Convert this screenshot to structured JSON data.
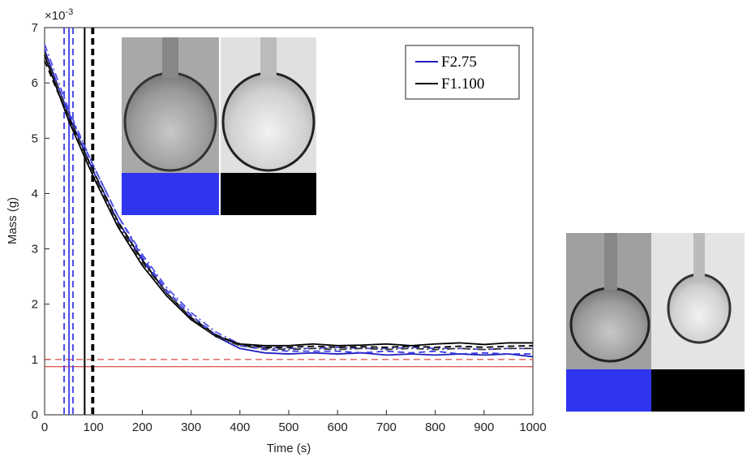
{
  "chart_data": {
    "type": "line",
    "x_label": "Time (s)",
    "y_label": "Mass (g)",
    "y_multiplier": {
      "base": "×10",
      "exponent": "-3"
    },
    "x": [
      0,
      50,
      100,
      150,
      200,
      250,
      300,
      350,
      400,
      450,
      500,
      550,
      600,
      650,
      700,
      750,
      800,
      850,
      900,
      950,
      1000
    ],
    "series": [
      {
        "name": "F2.75",
        "color": "#2020c0",
        "dash": "solid",
        "values": [
          6.6,
          5.4,
          4.4,
          3.5,
          2.8,
          2.2,
          1.75,
          1.42,
          1.2,
          1.12,
          1.1,
          1.12,
          1.1,
          1.12,
          1.08,
          1.1,
          1.08,
          1.1,
          1.08,
          1.1,
          1.05
        ]
      },
      {
        "color": "#3a3ae0",
        "dash": "dashed",
        "values": [
          6.5,
          5.45,
          4.5,
          3.6,
          2.85,
          2.25,
          1.8,
          1.45,
          1.25,
          1.18,
          1.15,
          1.15,
          1.15,
          1.12,
          1.15,
          1.12,
          1.15,
          1.1,
          1.12,
          1.1,
          1.1
        ]
      },
      {
        "color": "#5050e8",
        "dash": "dashdot",
        "values": [
          6.7,
          5.5,
          4.5,
          3.6,
          2.9,
          2.3,
          1.85,
          1.5,
          1.28,
          1.22,
          1.2,
          1.2,
          1.22,
          1.2,
          1.2,
          1.22,
          1.2,
          1.2,
          1.18,
          1.2,
          1.2
        ]
      },
      {
        "name": "F1.100",
        "color": "#000000",
        "dash": "solid",
        "values": [
          6.5,
          5.3,
          4.3,
          3.4,
          2.7,
          2.15,
          1.72,
          1.42,
          1.28,
          1.25,
          1.25,
          1.28,
          1.25,
          1.26,
          1.28,
          1.25,
          1.28,
          1.3,
          1.27,
          1.3,
          1.3
        ]
      },
      {
        "color": "#000000",
        "dash": "dashed",
        "values": [
          6.4,
          5.35,
          4.4,
          3.5,
          2.8,
          2.2,
          1.76,
          1.45,
          1.27,
          1.22,
          1.22,
          1.24,
          1.22,
          1.23,
          1.22,
          1.24,
          1.22,
          1.24,
          1.22,
          1.24,
          1.25
        ]
      },
      {
        "color": "#333333",
        "dash": "dashdot",
        "values": [
          6.55,
          5.4,
          4.35,
          3.45,
          2.75,
          2.2,
          1.75,
          1.42,
          1.25,
          1.2,
          1.18,
          1.2,
          1.18,
          1.2,
          1.18,
          1.2,
          1.18,
          1.2,
          1.18,
          1.2,
          1.2
        ]
      }
    ],
    "vlines": [
      {
        "x": 40,
        "color": "#4a4ae8",
        "dash": "dashed"
      },
      {
        "x": 50,
        "color": "#4a4ae8",
        "dash": "solid"
      },
      {
        "x": 58,
        "color": "#4a4ae8",
        "dash": "dashed"
      },
      {
        "x": 82,
        "color": "#000000",
        "dash": "solid"
      },
      {
        "x": 97,
        "color": "#000000",
        "dash": "dashed"
      },
      {
        "x": 100,
        "color": "#000000",
        "dash": "dashed"
      }
    ],
    "hlines": [
      {
        "y": 1.0,
        "color": "#d02020",
        "dash": "dashed"
      },
      {
        "y": 0.87,
        "color": "#d02020",
        "dash": "solid"
      }
    ],
    "xlim": [
      0,
      1000
    ],
    "xticks": [
      0,
      100,
      200,
      300,
      400,
      500,
      600,
      700,
      800,
      900,
      1000
    ],
    "ylim": [
      0,
      7
    ],
    "yticks": [
      0,
      1,
      2,
      3,
      4,
      5,
      6,
      7
    ],
    "legend": "upper right"
  }
}
